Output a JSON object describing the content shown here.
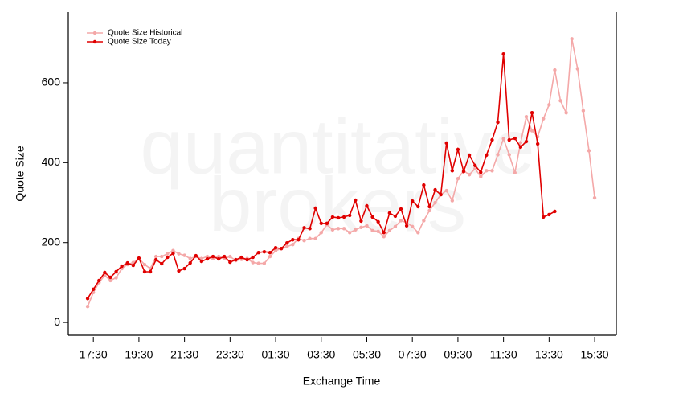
{
  "chart_data": {
    "type": "line",
    "watermark": [
      "quantitative",
      "brokers"
    ],
    "xlabel": "Exchange Time",
    "ylabel": "Quote Size",
    "categories": [
      null,
      "17:30",
      null,
      null,
      null,
      null,
      null,
      null,
      null,
      "19:30",
      null,
      null,
      null,
      null,
      null,
      null,
      null,
      "21:30",
      null,
      null,
      null,
      null,
      null,
      null,
      null,
      "23:30",
      null,
      null,
      null,
      null,
      null,
      null,
      null,
      "01:30",
      null,
      null,
      null,
      null,
      null,
      null,
      null,
      "03:30",
      null,
      null,
      null,
      null,
      null,
      null,
      null,
      "05:30",
      null,
      null,
      null,
      null,
      null,
      null,
      null,
      "07:30",
      null,
      null,
      null,
      null,
      null,
      null,
      null,
      "09:30",
      null,
      null,
      null,
      null,
      null,
      null,
      null,
      "11:30",
      null,
      null,
      null,
      null,
      null,
      null,
      null,
      "13:30",
      null,
      null,
      null,
      null,
      null,
      null,
      null,
      "15:30"
    ],
    "xlim": [
      -3.4,
      92.8
    ],
    "ylim": [
      -32,
      777
    ],
    "yticks": [
      0,
      200,
      400,
      600
    ],
    "legend": "top-left",
    "series": [
      {
        "name": "Quote Size Historical",
        "color": "#f4a8a8",
        "values": [
          40,
          75,
          100,
          118,
          105,
          112,
          135,
          145,
          150,
          160,
          145,
          135,
          165,
          165,
          172,
          180,
          172,
          168,
          160,
          165,
          160,
          165,
          160,
          165,
          160,
          165,
          155,
          158,
          160,
          150,
          148,
          148,
          165,
          180,
          185,
          190,
          195,
          210,
          205,
          210,
          210,
          225,
          245,
          232,
          235,
          235,
          225,
          232,
          238,
          242,
          230,
          228,
          215,
          230,
          240,
          255,
          250,
          240,
          225,
          255,
          280,
          300,
          320,
          330,
          305,
          360,
          380,
          370,
          385,
          365,
          380,
          380,
          420,
          460,
          420,
          375,
          450,
          515,
          480,
          465,
          510,
          545,
          632,
          555,
          525,
          710,
          635,
          530,
          430,
          312
        ]
      },
      {
        "name": "Quote Size Today",
        "color": "#e00000",
        "values": [
          60,
          83,
          105,
          125,
          113,
          127,
          141,
          149,
          143,
          161,
          127,
          127,
          157,
          147,
          163,
          173,
          129,
          135,
          149,
          167,
          153,
          159,
          165,
          159,
          165,
          151,
          157,
          163,
          157,
          163,
          175,
          177,
          175,
          187,
          185,
          199,
          207,
          207,
          237,
          235,
          286,
          248,
          248,
          264,
          262,
          264,
          268,
          306,
          254,
          292,
          264,
          252,
          225,
          274,
          266,
          284,
          242,
          304,
          290,
          344,
          290,
          332,
          320,
          449,
          380,
          433,
          378,
          419,
          393,
          376,
          419,
          457,
          501,
          672,
          457,
          461,
          439,
          453,
          525,
          447,
          264,
          270,
          278,
          null,
          null,
          null,
          null,
          null,
          null,
          null
        ]
      }
    ]
  }
}
